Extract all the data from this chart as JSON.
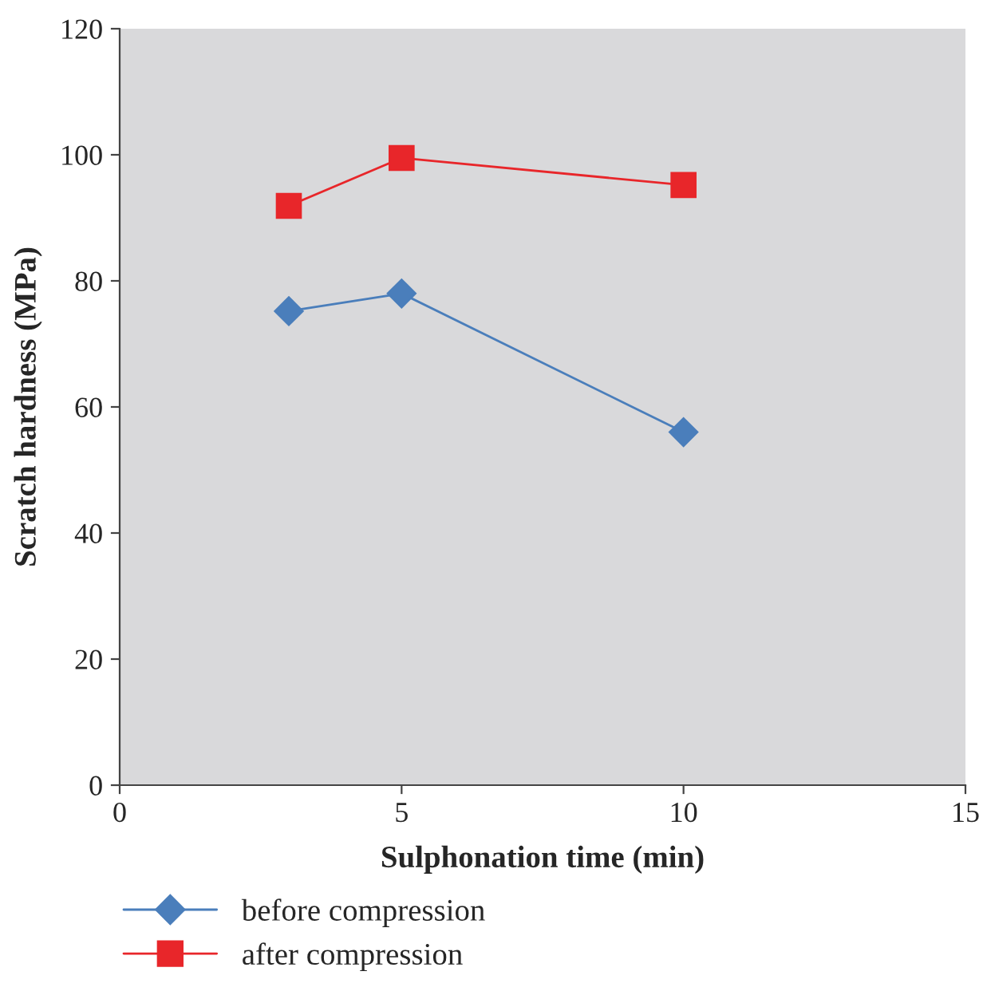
{
  "chart_data": {
    "type": "line",
    "xlabel": "Sulphonation time (min)",
    "ylabel": "Scratch hardness (MPa)",
    "x": [
      3,
      5,
      10
    ],
    "series": [
      {
        "name": "before compression",
        "color": "#4a7ebb",
        "values": [
          75.2,
          78.0,
          56.0
        ],
        "marker": "diamond"
      },
      {
        "name": "after compression",
        "color": "#e8262a",
        "values": [
          91.9,
          99.5,
          95.2
        ],
        "marker": "square"
      }
    ],
    "xlim": [
      0,
      15
    ],
    "xticks": [
      0,
      5,
      10,
      15
    ],
    "ylim": [
      0,
      120
    ],
    "yticks": [
      0,
      20,
      40,
      60,
      80,
      100,
      120
    ],
    "grid": false,
    "legend": "bottom",
    "line_style": "solid"
  }
}
